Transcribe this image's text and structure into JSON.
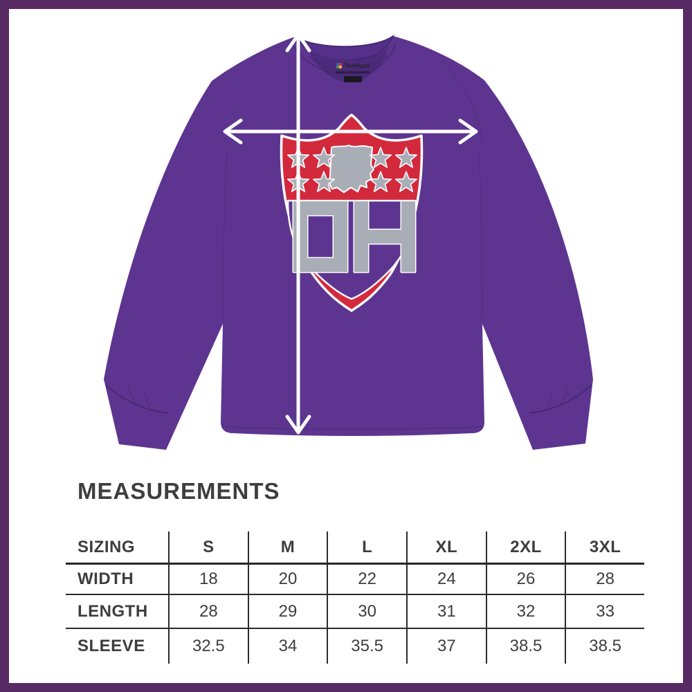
{
  "frame": {
    "border_color": "#582a64"
  },
  "product_image": {
    "shirt": {
      "type": "long sleeve t-shirt",
      "color_hex": "#5d3590"
    },
    "tag": {
      "brand": "TeeHunt"
    },
    "logo": {
      "text": "OH",
      "shape": "shield",
      "shield_color": "#d3293c",
      "letter_color": "#a9aeb6",
      "star_count": 8,
      "center_shape": "Ohio state silhouette"
    },
    "annotations": {
      "horizontal_arrow": "width measurement arrow",
      "vertical_arrow": "length measurement arrow",
      "arrow_color": "#ffffff"
    }
  },
  "measurements": {
    "heading": "MEASUREMENTS",
    "table": {
      "header": [
        "SIZING",
        "S",
        "M",
        "L",
        "XL",
        "2XL",
        "3XL"
      ],
      "rows": [
        {
          "label": "WIDTH",
          "values": [
            "18",
            "20",
            "22",
            "24",
            "26",
            "28"
          ]
        },
        {
          "label": "LENGTH",
          "values": [
            "28",
            "29",
            "30",
            "31",
            "32",
            "33"
          ]
        },
        {
          "label": "SLEEVE",
          "values": [
            "32.5",
            "34",
            "35.5",
            "37",
            "38.5",
            "38.5"
          ]
        }
      ]
    }
  },
  "chart_data": {
    "type": "table",
    "title": "MEASUREMENTS",
    "columns": [
      "SIZING",
      "S",
      "M",
      "L",
      "XL",
      "2XL",
      "3XL"
    ],
    "rows": [
      [
        "WIDTH",
        18,
        20,
        22,
        24,
        26,
        28
      ],
      [
        "LENGTH",
        28,
        29,
        30,
        31,
        32,
        33
      ],
      [
        "SLEEVE",
        32.5,
        34,
        35.5,
        37,
        38.5,
        38.5
      ]
    ]
  }
}
